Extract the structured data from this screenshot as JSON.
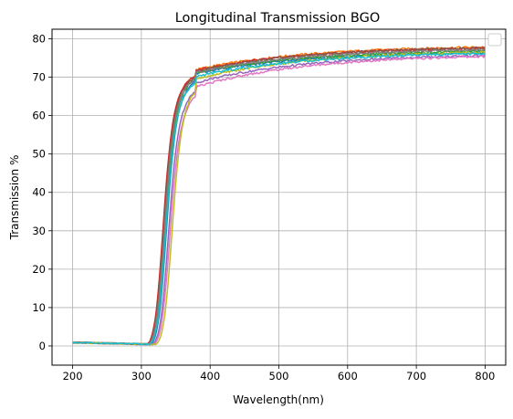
{
  "chart_data": {
    "type": "line",
    "title": "Longitudinal Transmission BGO",
    "xlabel": "Wavelength(nm)",
    "ylabel": "Transmission %",
    "xlim": [
      170,
      830
    ],
    "ylim": [
      -5,
      82.5
    ],
    "xticks": [
      200,
      300,
      400,
      500,
      600,
      700,
      800
    ],
    "yticks": [
      0,
      10,
      20,
      30,
      40,
      50,
      60,
      70,
      80
    ],
    "grid": true,
    "legend": {
      "placement": "top-right",
      "entries": []
    },
    "series": [
      {
        "color": "#1f77b4",
        "plateau": 76.8,
        "edge": 322,
        "shoulder": 71.0
      },
      {
        "color": "#ff7f0e",
        "plateau": 78.3,
        "edge": 318,
        "shoulder": 72.0
      },
      {
        "color": "#2ca02c",
        "plateau": 77.2,
        "edge": 320,
        "shoulder": 71.2
      },
      {
        "color": "#d62728",
        "plateau": 78.0,
        "edge": 317,
        "shoulder": 71.8
      },
      {
        "color": "#9467bd",
        "plateau": 76.2,
        "edge": 325,
        "shoulder": 68.6
      },
      {
        "color": "#8c564b",
        "plateau": 78.1,
        "edge": 318,
        "shoulder": 71.6
      },
      {
        "color": "#e377c2",
        "plateau": 76.0,
        "edge": 327,
        "shoulder": 67.5
      },
      {
        "color": "#7f7f7f",
        "plateau": 77.6,
        "edge": 319,
        "shoulder": 71.2
      },
      {
        "color": "#bcbd22",
        "plateau": 77.0,
        "edge": 330,
        "shoulder": 69.5
      },
      {
        "color": "#17becf",
        "plateau": 76.6,
        "edge": 321,
        "shoulder": 70.2
      }
    ]
  }
}
